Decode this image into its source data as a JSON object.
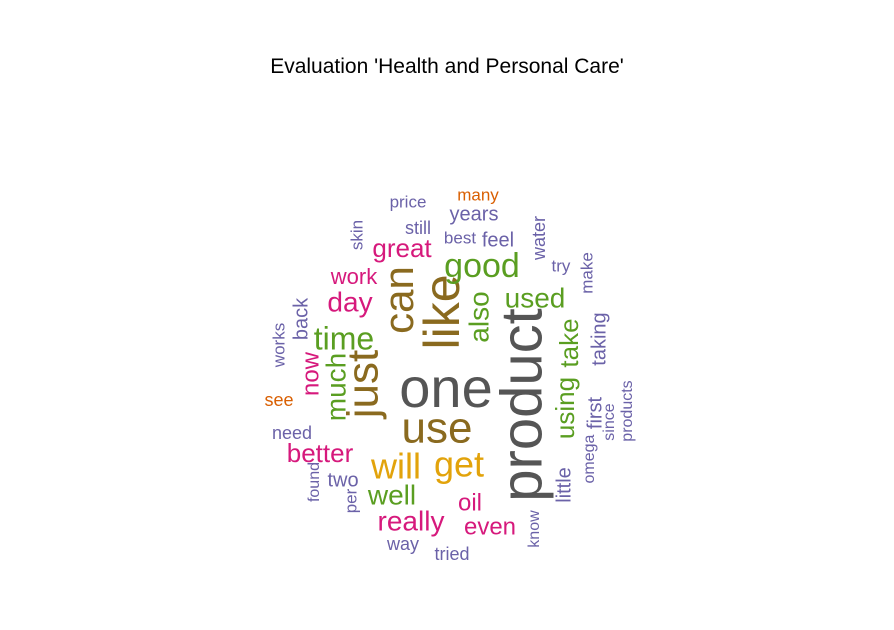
{
  "chart_data": {
    "type": "wordcloud",
    "title": "Evaluation 'Health and Personal Care'",
    "words": [
      {
        "text": "product",
        "color": "#555555"
      },
      {
        "text": "one",
        "color": "#555555"
      },
      {
        "text": "use",
        "color": "#8a6a1f"
      },
      {
        "text": "can",
        "color": "#8a6a1f"
      },
      {
        "text": "like",
        "color": "#8a6a1f"
      },
      {
        "text": "just",
        "color": "#8a6a1f"
      },
      {
        "text": "get",
        "color": "#e2a30b"
      },
      {
        "text": "will",
        "color": "#e2a30b"
      },
      {
        "text": "good",
        "color": "#5a9e21"
      },
      {
        "text": "time",
        "color": "#5a9e21"
      },
      {
        "text": "also",
        "color": "#5a9e21"
      },
      {
        "text": "much",
        "color": "#5a9e21"
      },
      {
        "text": "using",
        "color": "#5a9e21"
      },
      {
        "text": "used",
        "color": "#5a9e21"
      },
      {
        "text": "well",
        "color": "#5a9e21"
      },
      {
        "text": "take",
        "color": "#5a9e21"
      },
      {
        "text": "great",
        "color": "#d6197c"
      },
      {
        "text": "day",
        "color": "#d6197c"
      },
      {
        "text": "work",
        "color": "#d6197c"
      },
      {
        "text": "now",
        "color": "#d6197c"
      },
      {
        "text": "better",
        "color": "#d6197c"
      },
      {
        "text": "really",
        "color": "#d6197c"
      },
      {
        "text": "even",
        "color": "#d6197c"
      },
      {
        "text": "oil",
        "color": "#d6197c"
      },
      {
        "text": "back",
        "color": "#6b62a8"
      },
      {
        "text": "two",
        "color": "#6b62a8"
      },
      {
        "text": "taking",
        "color": "#6b62a8"
      },
      {
        "text": "first",
        "color": "#6b62a8"
      },
      {
        "text": "little",
        "color": "#6b62a8"
      },
      {
        "text": "years",
        "color": "#6b62a8"
      },
      {
        "text": "feel",
        "color": "#6b62a8"
      },
      {
        "text": "water",
        "color": "#6b62a8"
      },
      {
        "text": "best",
        "color": "#6b62a8"
      },
      {
        "text": "still",
        "color": "#6b62a8"
      },
      {
        "text": "price",
        "color": "#6b62a8"
      },
      {
        "text": "skin",
        "color": "#6b62a8"
      },
      {
        "text": "try",
        "color": "#6b62a8"
      },
      {
        "text": "make",
        "color": "#6b62a8"
      },
      {
        "text": "works",
        "color": "#6b62a8"
      },
      {
        "text": "need",
        "color": "#6b62a8"
      },
      {
        "text": "found",
        "color": "#6b62a8"
      },
      {
        "text": "per",
        "color": "#6b62a8"
      },
      {
        "text": "way",
        "color": "#6b62a8"
      },
      {
        "text": "tried",
        "color": "#6b62a8"
      },
      {
        "text": "know",
        "color": "#6b62a8"
      },
      {
        "text": "omega",
        "color": "#6b62a8"
      },
      {
        "text": "since",
        "color": "#6b62a8"
      },
      {
        "text": "products",
        "color": "#6b62a8"
      },
      {
        "text": "many",
        "color": "#d95f02"
      },
      {
        "text": "see",
        "color": "#d95f02"
      }
    ]
  }
}
